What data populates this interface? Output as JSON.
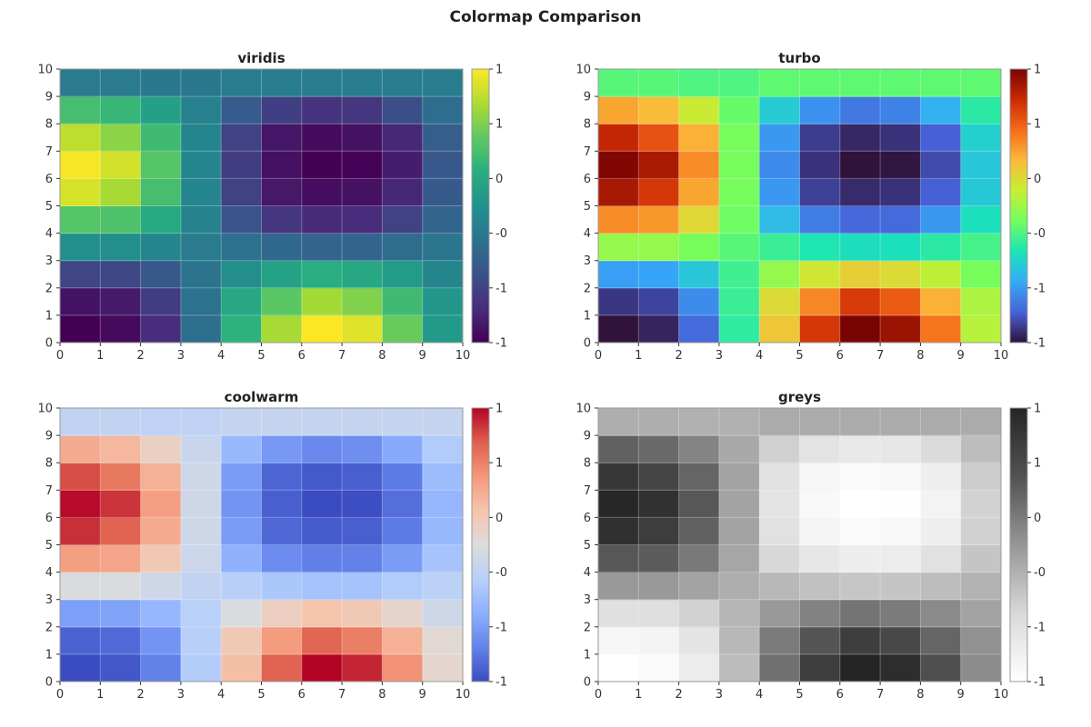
{
  "chart_data": {
    "type": "heatmap",
    "title": "Colormap Comparison",
    "x_ticks": [
      "0",
      "1",
      "2",
      "3",
      "4",
      "5",
      "6",
      "7",
      "8",
      "9",
      "10"
    ],
    "y_ticks": [
      "0",
      "1",
      "2",
      "3",
      "4",
      "5",
      "6",
      "7",
      "8",
      "9",
      "10"
    ],
    "xlim": [
      0,
      10
    ],
    "ylim": [
      0,
      10
    ],
    "value_range": [
      -1,
      1
    ],
    "colorbar_ticks": {
      "values": [
        -1,
        -0.6,
        -0.2,
        0.2,
        0.6,
        1
      ],
      "labels": [
        "-1",
        "-1",
        "-0",
        "0",
        "1",
        "1"
      ]
    },
    "grid": true,
    "values_rows_bottom_to_top": [
      [
        -1.0,
        -0.95,
        -0.75,
        -0.28,
        0.28,
        0.73,
        1.0,
        0.91,
        0.53,
        0.07
      ],
      [
        -0.9,
        -0.86,
        -0.65,
        -0.25,
        0.2,
        0.48,
        0.72,
        0.61,
        0.36,
        0.04
      ],
      [
        -0.59,
        -0.57,
        -0.45,
        -0.24,
        -0.02,
        0.15,
        0.25,
        0.2,
        0.09,
        -0.1
      ],
      [
        -0.02,
        -0.02,
        -0.1,
        -0.18,
        -0.25,
        -0.32,
        -0.36,
        -0.35,
        -0.29,
        -0.22
      ],
      [
        0.46,
        0.43,
        0.21,
        -0.12,
        -0.49,
        -0.69,
        -0.76,
        -0.75,
        -0.61,
        -0.35
      ],
      [
        0.88,
        0.73,
        0.39,
        -0.1,
        -0.61,
        -0.87,
        -0.93,
        -0.91,
        -0.78,
        -0.44
      ],
      [
        0.98,
        0.87,
        0.46,
        -0.1,
        -0.65,
        -0.91,
        -1.0,
        -0.99,
        -0.84,
        -0.45
      ],
      [
        0.8,
        0.64,
        0.36,
        -0.1,
        -0.61,
        -0.88,
        -0.94,
        -0.91,
        -0.78,
        -0.41
      ],
      [
        0.39,
        0.32,
        0.13,
        -0.14,
        -0.43,
        -0.63,
        -0.71,
        -0.68,
        -0.53,
        -0.29
      ],
      [
        -0.18,
        -0.18,
        -0.2,
        -0.2,
        -0.16,
        -0.16,
        -0.16,
        -0.16,
        -0.16,
        -0.16
      ]
    ],
    "panels": [
      {
        "title": "viridis",
        "colors": [
          "#440154",
          "#472d7b",
          "#3b528b",
          "#2c728e",
          "#21918c",
          "#28ae80",
          "#5ec962",
          "#addc30",
          "#fde725"
        ]
      },
      {
        "title": "turbo",
        "colors": [
          "#30123b",
          "#4662d7",
          "#36aaf9",
          "#1ae4b6",
          "#72fe5e",
          "#c7ef34",
          "#faba39",
          "#f66b19",
          "#cb2a04",
          "#7a0403"
        ]
      },
      {
        "title": "coolwarm",
        "colors": [
          "#3b4cc0",
          "#6282ea",
          "#8db0fe",
          "#b8d0f9",
          "#dddcdc",
          "#f5c4ac",
          "#f4987a",
          "#de604d",
          "#b40426"
        ]
      },
      {
        "title": "greys",
        "colors": [
          "#ffffff",
          "#d9d9d9",
          "#969696",
          "#525252",
          "#252525"
        ]
      }
    ]
  }
}
